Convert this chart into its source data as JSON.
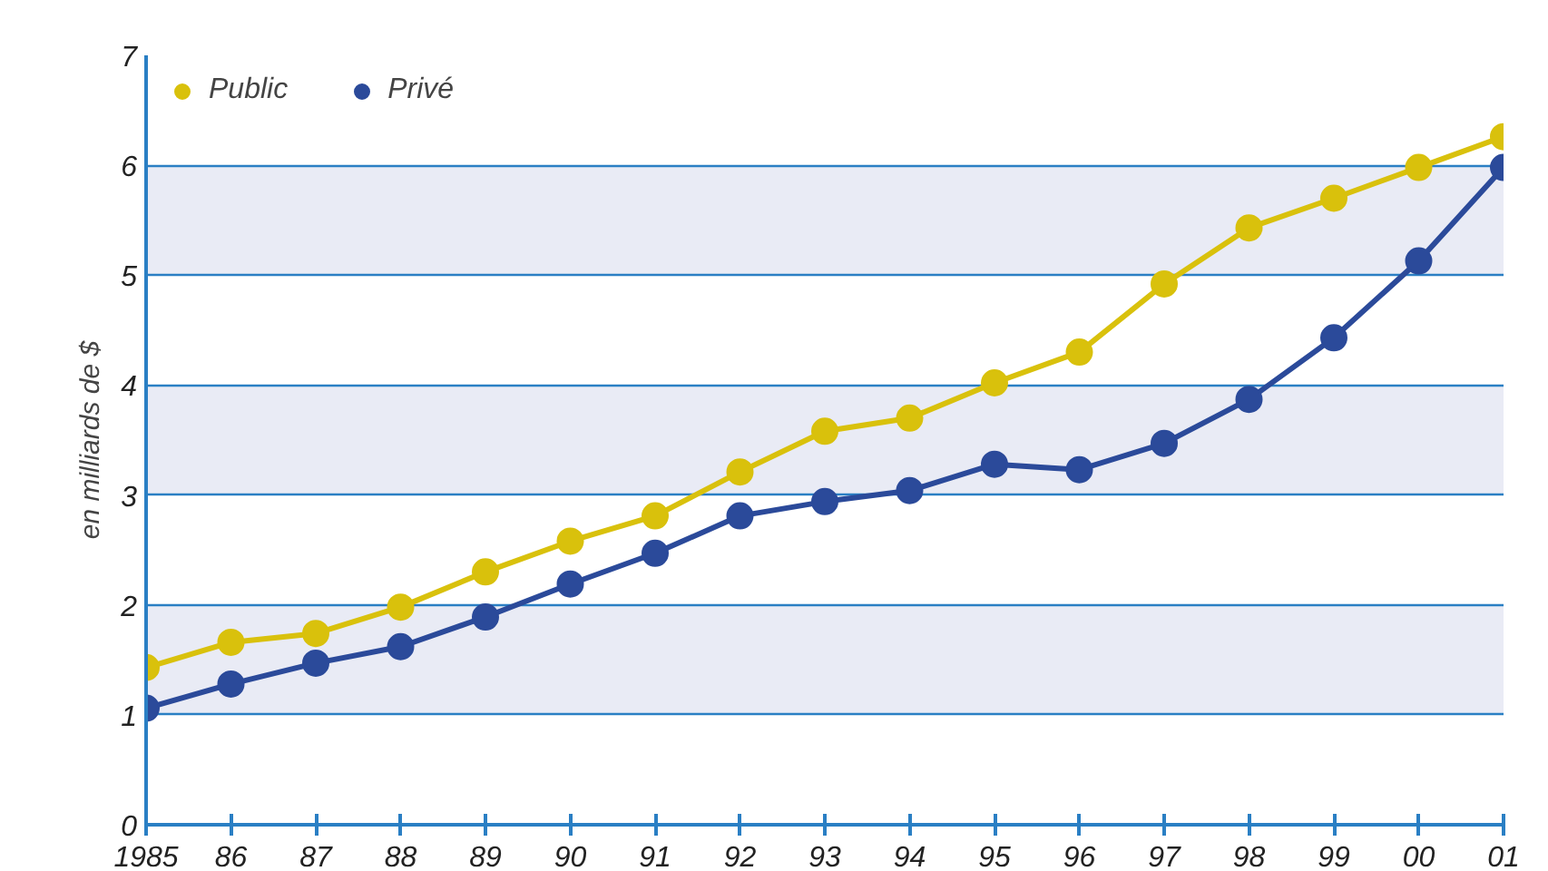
{
  "chart_data": {
    "type": "line",
    "ylabel": "en milliards de $",
    "x": [
      1985,
      1986,
      1987,
      1988,
      1989,
      1990,
      1991,
      1992,
      1993,
      1994,
      1995,
      1996,
      1997,
      1998,
      1999,
      2000,
      2001
    ],
    "series": [
      {
        "name": "Public",
        "color": "#d9c10c",
        "values": [
          1.43,
          1.66,
          1.74,
          1.98,
          2.3,
          2.58,
          2.81,
          3.21,
          3.58,
          3.7,
          4.02,
          4.3,
          4.92,
          5.43,
          5.7,
          5.98,
          6.26
        ]
      },
      {
        "name": "Privé",
        "color": "#2b4a9a",
        "values": [
          1.06,
          1.28,
          1.47,
          1.62,
          1.89,
          2.19,
          2.47,
          2.81,
          2.94,
          3.04,
          3.28,
          3.23,
          3.47,
          3.87,
          4.43,
          5.13,
          5.98
        ]
      }
    ],
    "xlim": [
      1985,
      2001
    ],
    "xticks": [
      {
        "value": 1985,
        "label": "1985"
      },
      {
        "value": 1986,
        "label": "86"
      },
      {
        "value": 1987,
        "label": "87"
      },
      {
        "value": 1988,
        "label": "88"
      },
      {
        "value": 1989,
        "label": "89"
      },
      {
        "value": 1990,
        "label": "90"
      },
      {
        "value": 1991,
        "label": "91"
      },
      {
        "value": 1992,
        "label": "92"
      },
      {
        "value": 1993,
        "label": "93"
      },
      {
        "value": 1994,
        "label": "94"
      },
      {
        "value": 1995,
        "label": "95"
      },
      {
        "value": 1996,
        "label": "96"
      },
      {
        "value": 1997,
        "label": "97"
      },
      {
        "value": 1998,
        "label": "98"
      },
      {
        "value": 1999,
        "label": "99"
      },
      {
        "value": 2000,
        "label": "00"
      },
      {
        "value": 2001,
        "label": "01"
      }
    ],
    "ylim": [
      0,
      7
    ],
    "yticks": [
      0,
      1,
      2,
      3,
      4,
      5,
      6,
      7
    ],
    "grid": "y",
    "legend": "top left",
    "marker": "circle",
    "line_style": "solid"
  }
}
